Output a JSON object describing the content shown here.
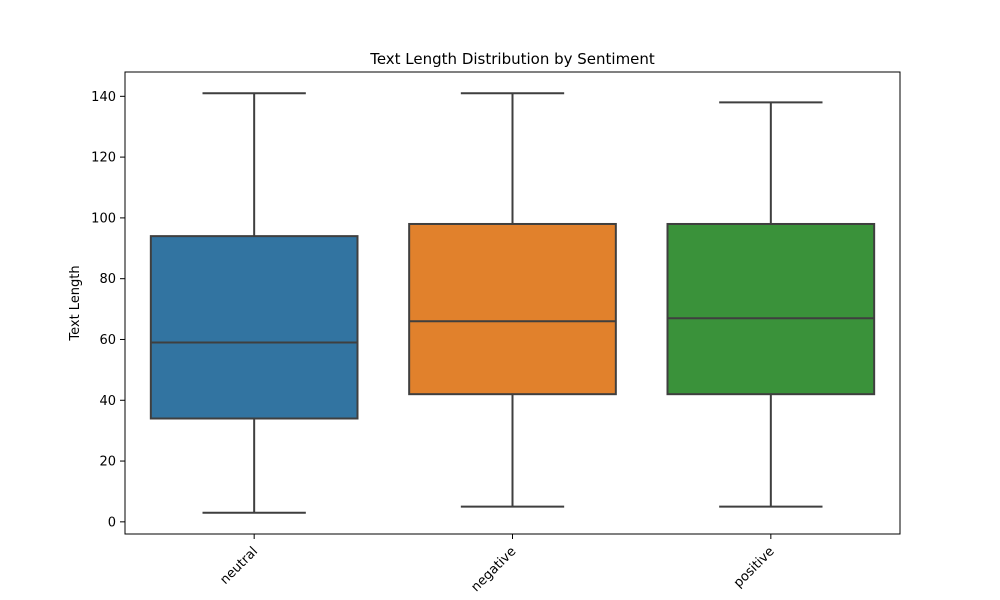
{
  "chart_data": {
    "type": "box",
    "title": "Text Length Distribution by Sentiment",
    "xlabel": "",
    "ylabel": "Text Length",
    "ylim": [
      -4,
      148
    ],
    "yticks": [
      0,
      20,
      40,
      60,
      80,
      100,
      120,
      140
    ],
    "grid": false,
    "categories": [
      "neutral",
      "negative",
      "positive"
    ],
    "boxes": [
      {
        "category": "neutral",
        "whisker_low": 3,
        "q1": 34,
        "median": 59,
        "q3": 94,
        "whisker_high": 141,
        "color": "#3274a1"
      },
      {
        "category": "negative",
        "whisker_low": 5,
        "q1": 42,
        "median": 66,
        "q3": 98,
        "whisker_high": 141,
        "color": "#e1812c"
      },
      {
        "category": "positive",
        "whisker_low": 5,
        "q1": 42,
        "median": 67,
        "q3": 98,
        "whisker_high": 138,
        "color": "#3a923a"
      }
    ],
    "line_color": "#3f3f3f"
  }
}
